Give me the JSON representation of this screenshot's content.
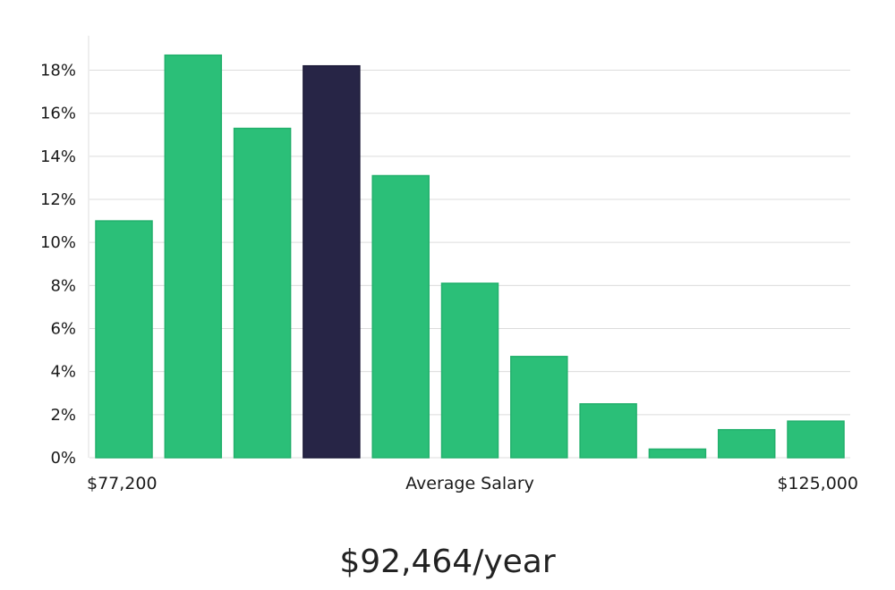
{
  "chart_data": {
    "type": "bar",
    "title": "",
    "xlabel": "Average Salary",
    "ylabel": "",
    "x_min_label": "$77,200",
    "x_max_label": "$125,000",
    "y_ticks": [
      "0%",
      "2%",
      "4%",
      "6%",
      "8%",
      "10%",
      "12%",
      "14%",
      "16%",
      "18%"
    ],
    "ylim": [
      0,
      19.6
    ],
    "grid": true,
    "values": [
      11.0,
      18.7,
      15.3,
      18.2,
      13.1,
      8.1,
      4.7,
      2.5,
      0.4,
      1.3,
      1.7
    ],
    "highlight_index": 3,
    "bar_color": "#2bbf78",
    "highlight_color": "#272546"
  },
  "summary": {
    "salary_text": "$92,464/year"
  }
}
